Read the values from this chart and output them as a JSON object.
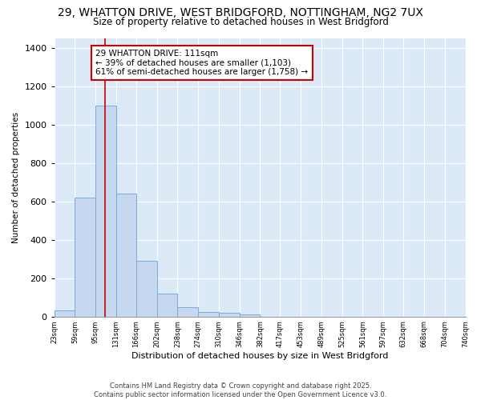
{
  "title": "29, WHATTON DRIVE, WEST BRIDGFORD, NOTTINGHAM, NG2 7UX",
  "subtitle": "Size of property relative to detached houses in West Bridgford",
  "xlabel": "Distribution of detached houses by size in West Bridgford",
  "ylabel": "Number of detached properties",
  "bar_color": "#c5d8f0",
  "bar_edge_color": "#7aabdb",
  "fig_background_color": "#ffffff",
  "plot_background_color": "#dce9f7",
  "grid_color": "#ffffff",
  "bin_edges": [
    23,
    59,
    95,
    131,
    166,
    202,
    238,
    274,
    310,
    346,
    382,
    417,
    453,
    489,
    525,
    561,
    597,
    632,
    668,
    704,
    740
  ],
  "bin_labels": [
    "23sqm",
    "59sqm",
    "95sqm",
    "131sqm",
    "166sqm",
    "202sqm",
    "238sqm",
    "274sqm",
    "310sqm",
    "346sqm",
    "382sqm",
    "417sqm",
    "453sqm",
    "489sqm",
    "525sqm",
    "561sqm",
    "597sqm",
    "632sqm",
    "668sqm",
    "704sqm",
    "740sqm"
  ],
  "counts": [
    30,
    620,
    1100,
    640,
    290,
    120,
    50,
    25,
    20,
    10,
    0,
    0,
    0,
    0,
    0,
    0,
    0,
    0,
    0,
    0
  ],
  "red_line_x": 111,
  "annotation_text": "29 WHATTON DRIVE: 111sqm\n← 39% of detached houses are smaller (1,103)\n61% of semi-detached houses are larger (1,758) →",
  "annotation_box_color": "#ffffff",
  "annotation_box_edge": "#cc0000",
  "red_line_color": "#cc0000",
  "footer_line1": "Contains HM Land Registry data © Crown copyright and database right 2025.",
  "footer_line2": "Contains public sector information licensed under the Open Government Licence v3.0.",
  "ylim": [
    0,
    1450
  ],
  "yticks": [
    0,
    200,
    400,
    600,
    800,
    1000,
    1200,
    1400
  ]
}
